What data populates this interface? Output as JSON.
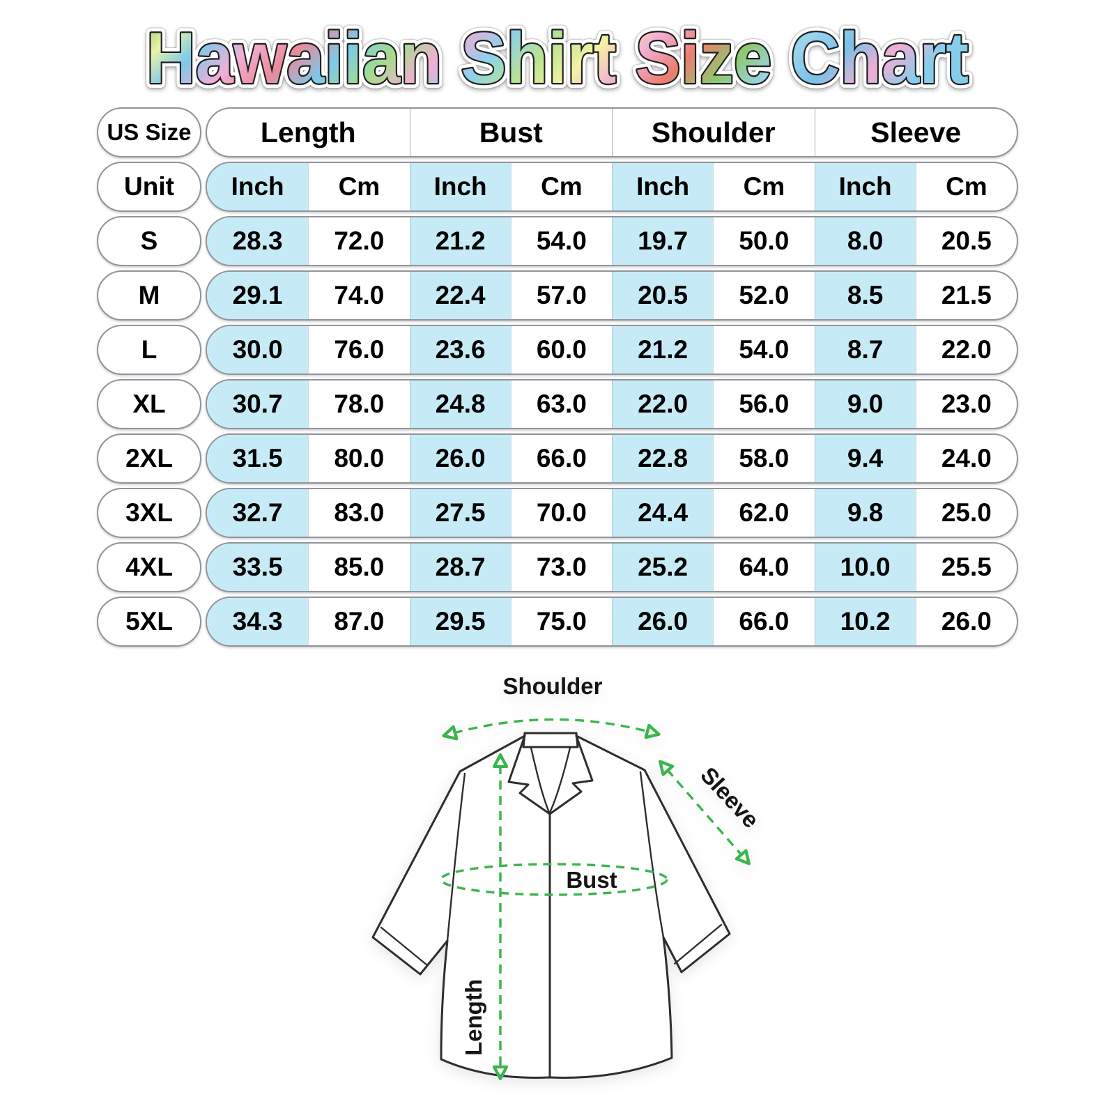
{
  "title": "Hawaiian Shirt Size Chart",
  "chart_data": {
    "type": "table",
    "title": "Hawaiian Shirt Size Chart",
    "corner_label": "US Size",
    "unit_label": "Unit",
    "column_groups": [
      "Length",
      "Bust",
      "Shoulder",
      "Sleeve"
    ],
    "unit_headers": [
      "Inch",
      "Cm",
      "Inch",
      "Cm",
      "Inch",
      "Cm",
      "Inch",
      "Cm"
    ],
    "rows": [
      {
        "size": "S",
        "values": [
          "28.3",
          "72.0",
          "21.2",
          "54.0",
          "19.7",
          "50.0",
          "8.0",
          "20.5"
        ]
      },
      {
        "size": "M",
        "values": [
          "29.1",
          "74.0",
          "22.4",
          "57.0",
          "20.5",
          "52.0",
          "8.5",
          "21.5"
        ]
      },
      {
        "size": "L",
        "values": [
          "30.0",
          "76.0",
          "23.6",
          "60.0",
          "21.2",
          "54.0",
          "8.7",
          "22.0"
        ]
      },
      {
        "size": "XL",
        "values": [
          "30.7",
          "78.0",
          "24.8",
          "63.0",
          "22.0",
          "56.0",
          "9.0",
          "23.0"
        ]
      },
      {
        "size": "2XL",
        "values": [
          "31.5",
          "80.0",
          "26.0",
          "66.0",
          "22.8",
          "58.0",
          "9.4",
          "24.0"
        ]
      },
      {
        "size": "3XL",
        "values": [
          "32.7",
          "83.0",
          "27.5",
          "70.0",
          "24.4",
          "62.0",
          "9.8",
          "25.0"
        ]
      },
      {
        "size": "4XL",
        "values": [
          "33.5",
          "85.0",
          "28.7",
          "73.0",
          "25.2",
          "64.0",
          "10.0",
          "25.5"
        ]
      },
      {
        "size": "5XL",
        "values": [
          "34.3",
          "87.0",
          "29.5",
          "75.0",
          "26.0",
          "66.0",
          "10.2",
          "26.0"
        ]
      }
    ]
  },
  "diagram": {
    "shoulder_label": "Shoulder",
    "sleeve_label": "Sleeve",
    "bust_label": "Bust",
    "length_label": "Length"
  },
  "colors": {
    "highlight": "#c6ebf7",
    "annotation_green": "#3ab54e",
    "pill_border": "#8f9499",
    "shirt_outline": "#2e2e2e"
  }
}
